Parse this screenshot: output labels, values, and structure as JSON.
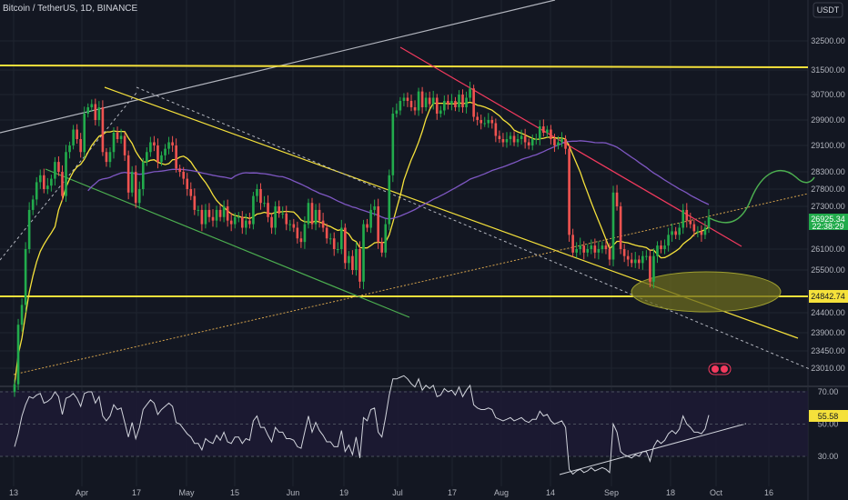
{
  "header": {
    "symbol_title": "Bitcoin / TetherUS, 1D, BINANCE",
    "currency": "USDT"
  },
  "colors": {
    "background": "#131722",
    "grid": "#1f2430",
    "up": "#26a69a",
    "down": "#ef5350",
    "up_bright": "#22ab4c",
    "yellow": "#f5e13b",
    "pink": "#f23a5e",
    "purple": "#7e57c2",
    "green_line": "#4caf50",
    "gray_line": "#b2b5be",
    "orange_dot": "#d4a24c"
  },
  "chart_data": [
    {
      "type": "candlestick",
      "title": "Bitcoin / TetherUS, 1D, BINANCE",
      "x_ticks": [
        "13",
        "Apr",
        "17",
        "May",
        "15",
        "Jun",
        "19",
        "Jul",
        "17",
        "Aug",
        "14",
        "Sep",
        "18",
        "Oct",
        "16"
      ],
      "y_ticks": [
        32500,
        31500,
        30700,
        29900,
        29100,
        28300,
        27800,
        27300,
        26100,
        25500,
        24400,
        23900,
        23450,
        23010
      ],
      "y_tick_labels": [
        "32500.00",
        "31500.00",
        "30700.00",
        "29900.00",
        "29100.00",
        "28300.00",
        "27800.00",
        "27300.00",
        "26100.00",
        "25500.00",
        "24400.00",
        "23900.00",
        "23450.00",
        "23010.00"
      ],
      "last_price": 26925.34,
      "last_price_label": "26925.34",
      "countdown_label": "22:38:29",
      "support_level_label": "24842.74",
      "closes": [
        22600,
        24100,
        24600,
        26100,
        27200,
        27500,
        28000,
        28200,
        27800,
        27900,
        28100,
        28600,
        28300,
        27600,
        28900,
        29100,
        29600,
        29300,
        28900,
        30100,
        30300,
        30400,
        29900,
        30300,
        28900,
        28600,
        28900,
        29500,
        29300,
        29400,
        28800,
        27700,
        28300,
        27400,
        27800,
        28600,
        28900,
        29200,
        29100,
        28600,
        28800,
        29000,
        29200,
        29100,
        28400,
        28300,
        28100,
        27800,
        27600,
        27200,
        27200,
        26800,
        27200,
        27000,
        26900,
        27200,
        27000,
        27300,
        26900,
        26800,
        27000,
        27000,
        26700,
        26900,
        26800,
        27600,
        27800,
        27400,
        27400,
        27000,
        26700,
        27300,
        27100,
        27100,
        26800,
        26800,
        26700,
        26400,
        26300,
        26800,
        27400,
        26800,
        27200,
        26900,
        26700,
        26400,
        26400,
        26100,
        26100,
        26700,
        25700,
        25900,
        25500,
        26100,
        25200,
        26800,
        26700,
        27200,
        27300,
        26300,
        26000,
        26800,
        28200,
        30100,
        30200,
        30500,
        30600,
        30500,
        30300,
        30200,
        30800,
        30300,
        30600,
        30400,
        30600,
        30100,
        30200,
        30500,
        30400,
        30500,
        30300,
        30700,
        30300,
        30600,
        30900,
        30000,
        29900,
        29800,
        29800,
        29900,
        29800,
        29400,
        29300,
        29200,
        29300,
        29400,
        29200,
        29300,
        29400,
        29200,
        29100,
        29300,
        29300,
        29700,
        29500,
        29600,
        29300,
        29100,
        29200,
        29300,
        29000,
        26500,
        26000,
        26100,
        26200,
        26000,
        26100,
        26200,
        26000,
        26100,
        26200,
        26100,
        25800,
        27700,
        27300,
        26100,
        25900,
        25800,
        25700,
        25800,
        25700,
        25900,
        25900,
        25200,
        25900,
        26200,
        26100,
        26200,
        26500,
        26600,
        26500,
        26700,
        27200,
        26900,
        26800,
        26600,
        26600,
        26500,
        26700,
        27000
      ],
      "moving_average_label": "",
      "rsi": {
        "y_ticks": [
          70,
          50,
          30
        ],
        "y_tick_labels": [
          "70.00",
          "50.00",
          "30.00"
        ],
        "last_value": 55.58,
        "last_label": "55.58",
        "values": [
          36,
          44,
          55,
          62,
          67,
          66,
          68,
          69,
          63,
          64,
          66,
          70,
          67,
          56,
          66,
          67,
          69,
          66,
          61,
          69,
          70,
          70,
          63,
          67,
          55,
          52,
          55,
          62,
          59,
          60,
          51,
          42,
          51,
          41,
          48,
          59,
          62,
          65,
          63,
          56,
          59,
          61,
          63,
          61,
          51,
          50,
          47,
          44,
          42,
          38,
          38,
          34,
          41,
          39,
          38,
          43,
          40,
          45,
          39,
          38,
          42,
          42,
          38,
          41,
          40,
          52,
          55,
          48,
          48,
          43,
          39,
          48,
          45,
          45,
          41,
          41,
          40,
          36,
          35,
          45,
          55,
          45,
          51,
          46,
          43,
          39,
          39,
          36,
          36,
          46,
          33,
          37,
          31,
          42,
          29,
          54,
          52,
          59,
          60,
          45,
          42,
          54,
          68,
          78,
          78,
          79,
          80,
          78,
          75,
          73,
          78,
          71,
          74,
          72,
          74,
          67,
          68,
          72,
          70,
          71,
          68,
          73,
          67,
          71,
          74,
          62,
          60,
          59,
          59,
          60,
          59,
          54,
          53,
          52,
          53,
          54,
          52,
          53,
          54,
          52,
          51,
          53,
          53,
          58,
          55,
          56,
          52,
          50,
          51,
          52,
          48,
          22,
          19,
          21,
          22,
          20,
          21,
          23,
          21,
          22,
          23,
          22,
          20,
          50,
          45,
          33,
          31,
          30,
          29,
          31,
          30,
          33,
          33,
          27,
          36,
          40,
          38,
          40,
          44,
          46,
          44,
          47,
          55,
          50,
          48,
          45,
          45,
          44,
          47,
          55.58
        ]
      }
    }
  ]
}
